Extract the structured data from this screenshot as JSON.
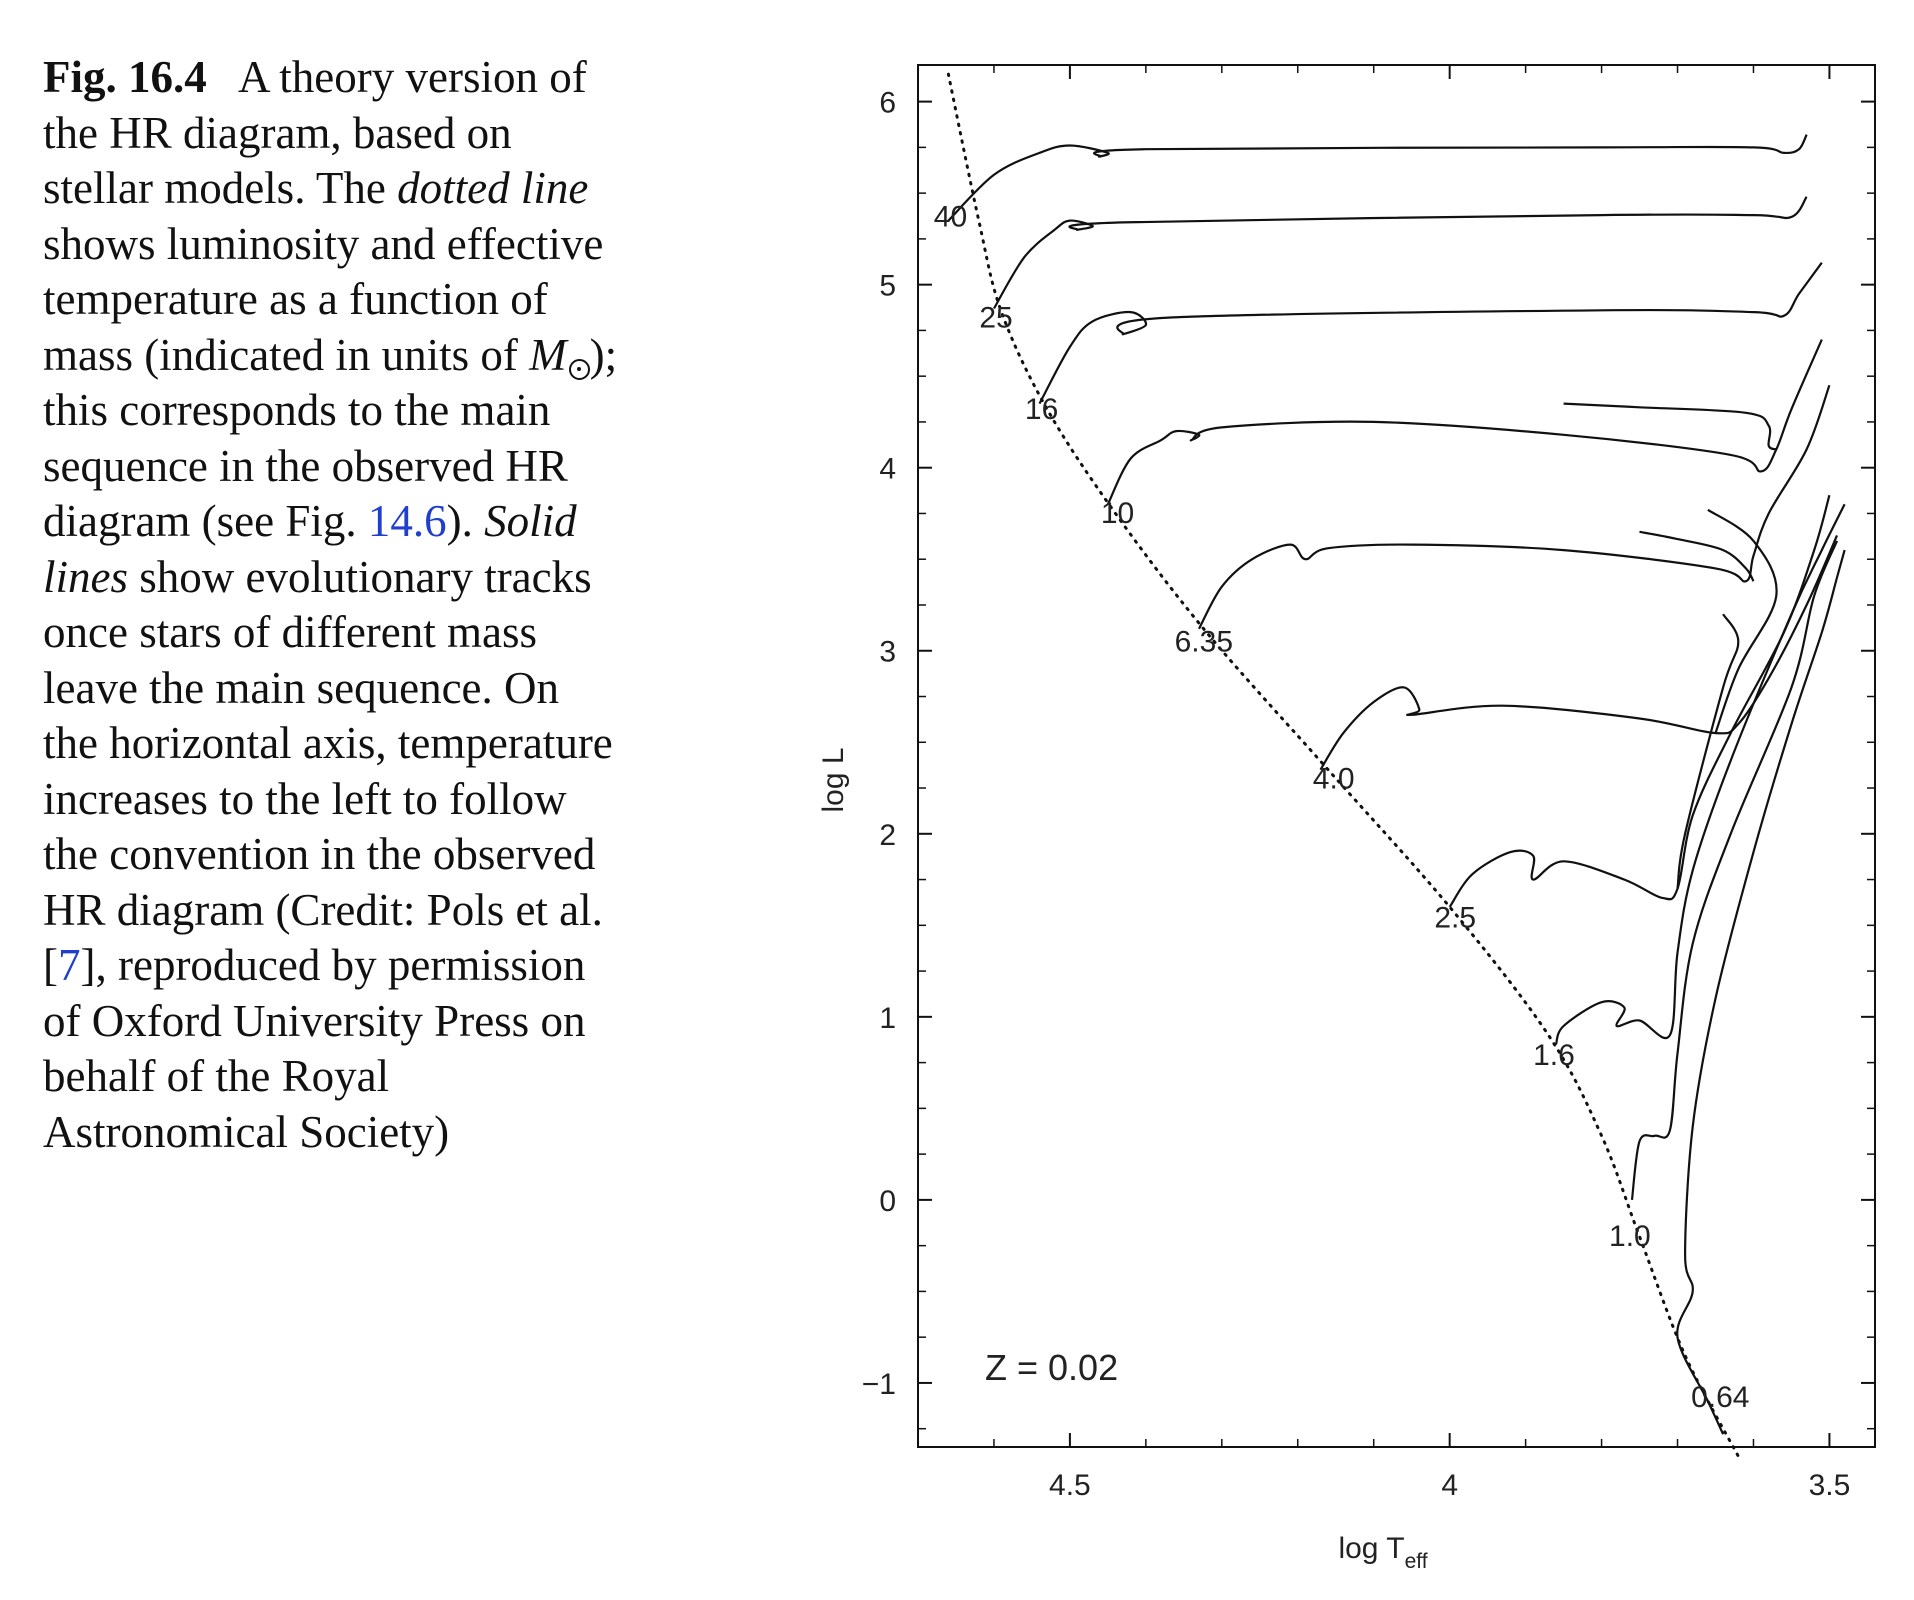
{
  "caption": {
    "fig_label": "Fig. 16.4",
    "t1": "A theory version of the HR diagram, based on stellar models. The",
    "dotted_line": "dotted line",
    "t2": "shows luminosity and effective temperature as a function of mass (indicated in units of",
    "msun": "M",
    "t3": "); this corresponds to the main sequence in the observed HR diagram (see Fig.",
    "fig_ref": "14.6",
    "t4": ").",
    "solid_lines": "Solid lines",
    "t5": "show evolutionary tracks once stars of different mass leave the main sequence. On the horizontal axis, temperature increases to the left to follow the convention in the observed HR diagram (Credit: Pols et al. [",
    "cite": "7",
    "t6": "], reproduced by permission of Oxford University Press on behalf of the Royal Astronomical Society)"
  },
  "chart_data": {
    "type": "line",
    "xlabel": "log T",
    "xlabel_sub": "eff",
    "ylabel": "log L",
    "xlim": [
      4.7,
      3.44
    ],
    "ylim": [
      -1.35,
      6.2
    ],
    "x_ticks": [
      {
        "v": 4.5,
        "label": "4.5"
      },
      {
        "v": 4.0,
        "label": "4"
      },
      {
        "v": 3.5,
        "label": "3.5"
      }
    ],
    "y_ticks": [
      {
        "v": 6,
        "label": "6"
      },
      {
        "v": 5,
        "label": "5"
      },
      {
        "v": 4,
        "label": "4"
      },
      {
        "v": 3,
        "label": "3"
      },
      {
        "v": 2,
        "label": "2"
      },
      {
        "v": 1,
        "label": "1"
      },
      {
        "v": 0,
        "label": "0"
      },
      {
        "v": -1,
        "label": "−1"
      }
    ],
    "annotation": "Z = 0.02",
    "zams": [
      [
        4.66,
        6.15
      ],
      [
        4.62,
        5.35
      ],
      [
        4.59,
        4.85
      ],
      [
        4.53,
        4.32
      ],
      [
        4.44,
        3.75
      ],
      [
        4.32,
        3.1
      ],
      [
        4.16,
        2.35
      ],
      [
        4.0,
        1.6
      ],
      [
        3.87,
        0.9
      ],
      [
        3.8,
        0.35
      ],
      [
        3.75,
        -0.2
      ],
      [
        3.69,
        -0.85
      ],
      [
        3.62,
        -1.4
      ]
    ],
    "mass_labels": [
      {
        "mass": "40",
        "x": 4.63,
        "y": 5.35
      },
      {
        "mass": "25",
        "x": 4.57,
        "y": 4.8
      },
      {
        "mass": "16",
        "x": 4.51,
        "y": 4.3
      },
      {
        "mass": "10",
        "x": 4.41,
        "y": 3.73
      },
      {
        "mass": "6.35",
        "x": 4.28,
        "y": 3.03
      },
      {
        "mass": "4.0",
        "x": 4.12,
        "y": 2.28
      },
      {
        "mass": "2.5",
        "x": 3.96,
        "y": 1.52
      },
      {
        "mass": "1.6",
        "x": 3.83,
        "y": 0.77
      },
      {
        "mass": "1.0",
        "x": 3.73,
        "y": -0.22
      },
      {
        "mass": "0.64",
        "x": 3.6,
        "y": -1.1
      }
    ],
    "tracks": [
      {
        "mass": "40",
        "points": [
          [
            4.66,
            5.35
          ],
          [
            4.6,
            5.6
          ],
          [
            4.54,
            5.72
          ],
          [
            4.5,
            5.76
          ],
          [
            4.45,
            5.72
          ],
          [
            4.46,
            5.7
          ],
          [
            4.4,
            5.74
          ],
          [
            3.8,
            5.75
          ],
          [
            3.6,
            5.75
          ],
          [
            3.56,
            5.72
          ],
          [
            3.54,
            5.74
          ],
          [
            3.53,
            5.82
          ]
        ]
      },
      {
        "mass": "25",
        "points": [
          [
            4.6,
            4.87
          ],
          [
            4.56,
            5.15
          ],
          [
            4.52,
            5.3
          ],
          [
            4.5,
            5.35
          ],
          [
            4.47,
            5.32
          ],
          [
            4.49,
            5.3
          ],
          [
            4.43,
            5.34
          ],
          [
            3.8,
            5.38
          ],
          [
            3.6,
            5.38
          ],
          [
            3.55,
            5.37
          ],
          [
            3.53,
            5.48
          ]
        ]
      },
      {
        "mass": "16",
        "points": [
          [
            4.54,
            4.35
          ],
          [
            4.5,
            4.66
          ],
          [
            4.47,
            4.8
          ],
          [
            4.42,
            4.85
          ],
          [
            4.4,
            4.78
          ],
          [
            4.43,
            4.73
          ],
          [
            4.37,
            4.82
          ],
          [
            3.8,
            4.86
          ],
          [
            3.6,
            4.85
          ],
          [
            3.56,
            4.83
          ],
          [
            3.54,
            4.95
          ],
          [
            3.51,
            5.12
          ]
        ]
      },
      {
        "mass": "10",
        "points": [
          [
            4.45,
            3.8
          ],
          [
            4.42,
            4.05
          ],
          [
            4.38,
            4.15
          ],
          [
            4.36,
            4.2
          ],
          [
            4.33,
            4.18
          ],
          [
            4.34,
            4.15
          ],
          [
            4.3,
            4.22
          ],
          [
            4.1,
            4.25
          ],
          [
            3.85,
            4.18
          ],
          [
            3.63,
            4.07
          ],
          [
            3.59,
            3.98
          ],
          [
            3.57,
            4.1
          ],
          [
            3.55,
            4.32
          ],
          [
            3.51,
            4.7
          ]
        ]
      },
      {
        "mass": "10b",
        "points": [
          [
            3.85,
            4.35
          ],
          [
            3.75,
            4.33
          ],
          [
            3.61,
            4.3
          ],
          [
            3.58,
            4.23
          ],
          [
            3.58,
            4.12
          ],
          [
            3.57,
            4.1
          ]
        ]
      },
      {
        "mass": "6.35",
        "points": [
          [
            4.33,
            3.12
          ],
          [
            4.3,
            3.35
          ],
          [
            4.26,
            3.5
          ],
          [
            4.21,
            3.58
          ],
          [
            4.19,
            3.5
          ],
          [
            4.16,
            3.56
          ],
          [
            4.05,
            3.58
          ],
          [
            3.85,
            3.55
          ],
          [
            3.65,
            3.45
          ],
          [
            3.61,
            3.38
          ],
          [
            3.6,
            3.52
          ],
          [
            3.58,
            3.75
          ],
          [
            3.53,
            4.1
          ],
          [
            3.5,
            4.45
          ]
        ]
      },
      {
        "mass": "6.35b",
        "points": [
          [
            3.75,
            3.65
          ],
          [
            3.7,
            3.61
          ],
          [
            3.64,
            3.55
          ],
          [
            3.61,
            3.45
          ],
          [
            3.6,
            3.38
          ]
        ]
      },
      {
        "mass": "4.0",
        "points": [
          [
            4.17,
            2.35
          ],
          [
            4.14,
            2.55
          ],
          [
            4.1,
            2.72
          ],
          [
            4.06,
            2.8
          ],
          [
            4.04,
            2.68
          ],
          [
            4.05,
            2.65
          ],
          [
            3.93,
            2.7
          ],
          [
            3.75,
            2.63
          ],
          [
            3.65,
            2.55
          ],
          [
            3.62,
            2.6
          ],
          [
            3.58,
            2.85
          ],
          [
            3.53,
            3.25
          ],
          [
            3.49,
            3.63
          ]
        ]
      },
      {
        "mass": "4.0b",
        "points": [
          [
            3.66,
            3.77
          ],
          [
            3.6,
            3.6
          ],
          [
            3.57,
            3.3
          ],
          [
            3.62,
            2.9
          ],
          [
            3.65,
            2.55
          ]
        ]
      },
      {
        "mass": "2.5",
        "points": [
          [
            4.0,
            1.6
          ],
          [
            3.97,
            1.78
          ],
          [
            3.92,
            1.9
          ],
          [
            3.89,
            1.88
          ],
          [
            3.89,
            1.75
          ],
          [
            3.85,
            1.85
          ],
          [
            3.77,
            1.75
          ],
          [
            3.72,
            1.65
          ],
          [
            3.7,
            1.7
          ],
          [
            3.68,
            2.1
          ],
          [
            3.63,
            2.55
          ],
          [
            3.56,
            3.1
          ],
          [
            3.52,
            3.55
          ],
          [
            3.5,
            3.85
          ]
        ]
      },
      {
        "mass": "2.5b",
        "points": [
          [
            3.64,
            3.2
          ],
          [
            3.62,
            3.05
          ],
          [
            3.64,
            2.8
          ],
          [
            3.69,
            2.0
          ],
          [
            3.7,
            1.7
          ]
        ]
      },
      {
        "mass": "1.6",
        "points": [
          [
            3.86,
            0.85
          ],
          [
            3.85,
            0.95
          ],
          [
            3.8,
            1.08
          ],
          [
            3.77,
            1.05
          ],
          [
            3.78,
            0.95
          ],
          [
            3.75,
            0.98
          ],
          [
            3.71,
            0.9
          ],
          [
            3.7,
            1.35
          ],
          [
            3.68,
            1.8
          ],
          [
            3.63,
            2.4
          ],
          [
            3.55,
            3.2
          ],
          [
            3.51,
            3.55
          ],
          [
            3.48,
            3.8
          ]
        ]
      },
      {
        "mass": "1.0",
        "points": [
          [
            3.76,
            0.0
          ],
          [
            3.75,
            0.32
          ],
          [
            3.73,
            0.35
          ],
          [
            3.71,
            0.38
          ],
          [
            3.7,
            0.8
          ],
          [
            3.68,
            1.4
          ],
          [
            3.63,
            2.0
          ],
          [
            3.55,
            2.8
          ],
          [
            3.52,
            3.3
          ],
          [
            3.49,
            3.6
          ]
        ]
      },
      {
        "mass": "0.64",
        "points": [
          [
            3.64,
            -1.28
          ],
          [
            3.66,
            -1.1
          ],
          [
            3.7,
            -0.75
          ],
          [
            3.68,
            -0.5
          ],
          [
            3.69,
            -0.3
          ],
          [
            3.68,
            0.4
          ],
          [
            3.65,
            1.1
          ],
          [
            3.6,
            1.9
          ],
          [
            3.55,
            2.6
          ],
          [
            3.51,
            3.1
          ],
          [
            3.49,
            3.4
          ],
          [
            3.48,
            3.55
          ]
        ]
      }
    ]
  }
}
